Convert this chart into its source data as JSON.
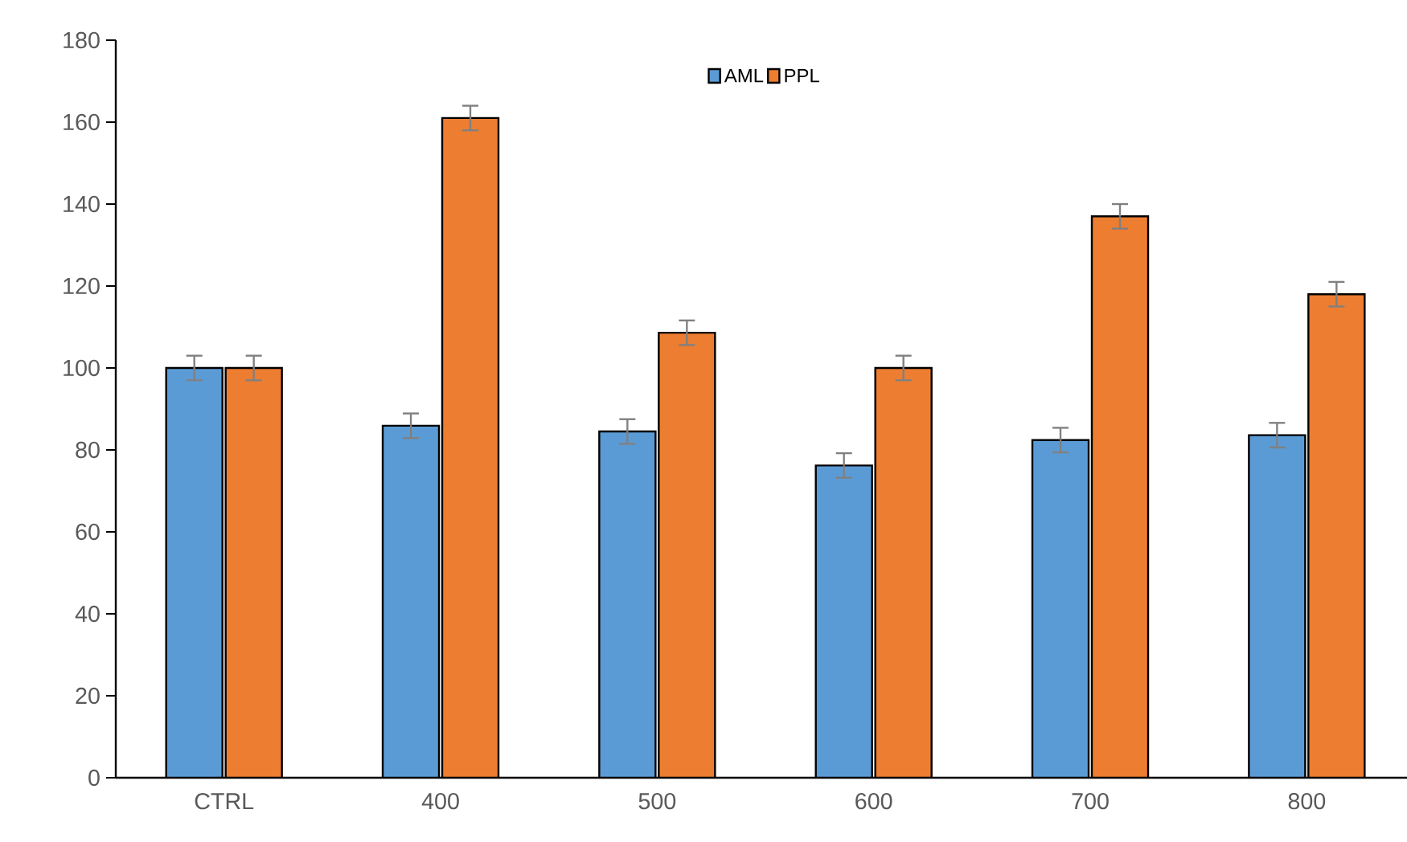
{
  "chart_data": {
    "type": "bar",
    "categories": [
      "CTRL",
      "400",
      "500",
      "600",
      "700",
      "800"
    ],
    "series": [
      {
        "name": "AML",
        "color": "#5b9bd5",
        "values": [
          100,
          85.9,
          84.5,
          76.2,
          82.4,
          83.6
        ],
        "errors": [
          3,
          3,
          3,
          3,
          3,
          3
        ]
      },
      {
        "name": "PPL",
        "color": "#ed7d31",
        "values": [
          100,
          161,
          108.6,
          100,
          137,
          118
        ],
        "errors": [
          3,
          3,
          3,
          3,
          3,
          3
        ]
      }
    ],
    "ylim": [
      0,
      180
    ],
    "yticks": [
      0,
      20,
      40,
      60,
      80,
      100,
      120,
      140,
      160,
      180
    ],
    "legend": "top",
    "grid": false
  }
}
